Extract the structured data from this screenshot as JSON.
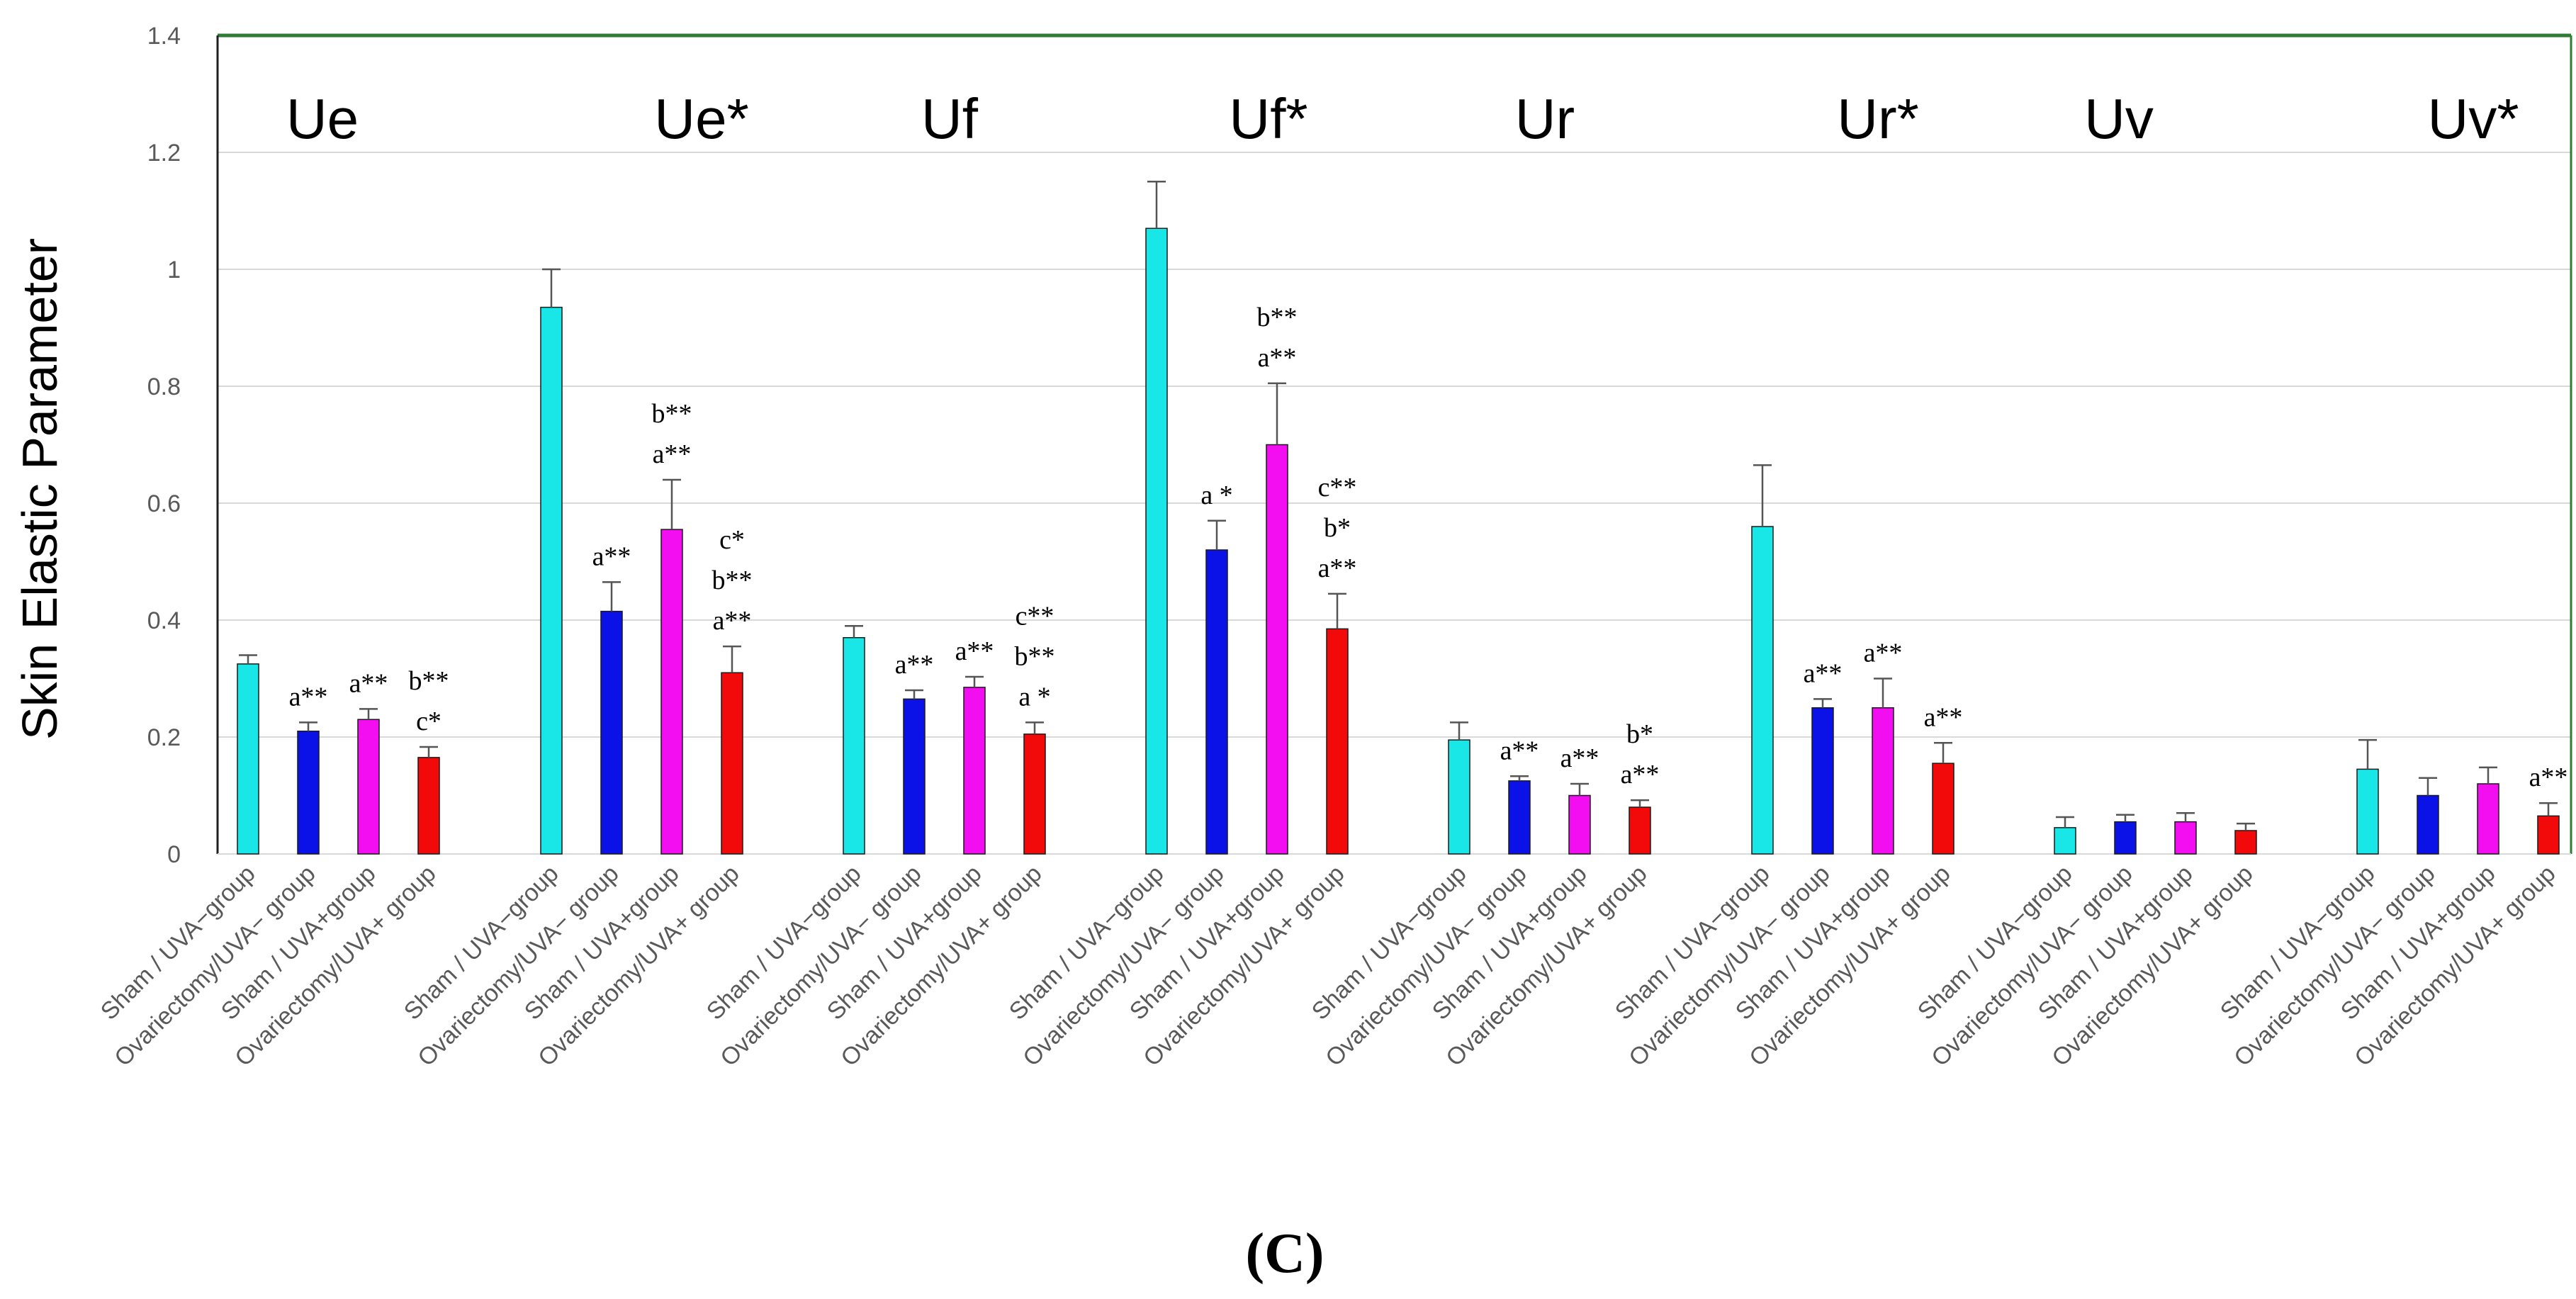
{
  "chart_data": {
    "type": "bar",
    "ylabel": "Skin Elastic Parameter",
    "xlabel": "",
    "ylim": [
      0,
      1.4
    ],
    "yticks": [
      "0",
      "0.2",
      "0.4",
      "0.6",
      "0.8",
      "1",
      "1.2",
      "1.4"
    ],
    "grid": true,
    "panel_label": "(C)",
    "series_labels": [
      "Sham / UVA−group",
      "Ovariectomy/UVA− group",
      "Sham / UVA+group",
      "Ovariectomy/UVA+ group"
    ],
    "colors": [
      "#19E6E6",
      "#0A12E8",
      "#F20EF0",
      "#F20A0A"
    ],
    "groups": [
      {
        "name": "Ue",
        "values": [
          0.325,
          0.21,
          0.23,
          0.165
        ],
        "errors": [
          0.015,
          0.015,
          0.018,
          0.018
        ],
        "annotations": [
          [],
          [
            "a**"
          ],
          [
            "a**"
          ],
          [
            "b**",
            "c*"
          ]
        ]
      },
      {
        "name": "Ue*",
        "values": [
          0.935,
          0.415,
          0.555,
          0.31
        ],
        "errors": [
          0.065,
          0.05,
          0.085,
          0.045
        ],
        "annotations": [
          [],
          [
            "a**"
          ],
          [
            "b**",
            "a**"
          ],
          [
            "c*",
            "b**",
            "a**"
          ]
        ]
      },
      {
        "name": "Uf",
        "values": [
          0.37,
          0.265,
          0.285,
          0.205
        ],
        "errors": [
          0.02,
          0.015,
          0.018,
          0.02
        ],
        "annotations": [
          [],
          [
            "a**"
          ],
          [
            "a**"
          ],
          [
            "c**",
            "b**",
            "a *"
          ]
        ]
      },
      {
        "name": "Uf*",
        "values": [
          1.07,
          0.52,
          0.7,
          0.385
        ],
        "errors": [
          0.08,
          0.05,
          0.105,
          0.06
        ],
        "annotations": [
          [],
          [
            "a *"
          ],
          [
            "b**",
            "a**"
          ],
          [
            "c**",
            "b*",
            "a**"
          ]
        ]
      },
      {
        "name": "Ur",
        "values": [
          0.195,
          0.125,
          0.1,
          0.08
        ],
        "errors": [
          0.03,
          0.008,
          0.02,
          0.012
        ],
        "annotations": [
          [],
          [
            "a**"
          ],
          [
            "a**"
          ],
          [
            "b*",
            "a**"
          ]
        ]
      },
      {
        "name": "Ur*",
        "values": [
          0.56,
          0.25,
          0.25,
          0.155
        ],
        "errors": [
          0.105,
          0.015,
          0.05,
          0.035
        ],
        "annotations": [
          [],
          [
            "a**"
          ],
          [
            "a**"
          ],
          [
            "a**"
          ]
        ]
      },
      {
        "name": "Uv",
        "values": [
          0.045,
          0.055,
          0.055,
          0.04
        ],
        "errors": [
          0.018,
          0.012,
          0.015,
          0.012
        ],
        "annotations": [
          [],
          [],
          [],
          []
        ]
      },
      {
        "name": "Uv*",
        "values": [
          0.145,
          0.1,
          0.12,
          0.065
        ],
        "errors": [
          0.05,
          0.03,
          0.028,
          0.022
        ],
        "annotations": [
          [],
          [],
          [],
          [
            "a**"
          ]
        ]
      }
    ]
  }
}
